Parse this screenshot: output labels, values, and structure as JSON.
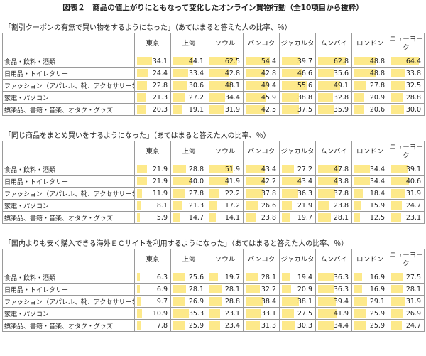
{
  "title": "図表２　商品の値上がりにともなって変化したオンライン買物行動（全10項目から抜粋）",
  "columns": [
    "東京",
    "上海",
    "ソウル",
    "バンコク",
    "ジャカルタ",
    "ムンバイ",
    "ロンドン",
    "ニューヨーク"
  ],
  "tables": [
    {
      "heading": "「割引クーポンの有無で買い物をするようになった」（あてはまると答えた人の比率、％）",
      "rows": [
        {
          "label": "食品・飲料・酒類",
          "values": [
            34.1,
            44.1,
            62.5,
            54.4,
            39.7,
            62.8,
            48.8,
            64.4
          ]
        },
        {
          "label": "日用品・トイレタリー",
          "values": [
            24.4,
            33.4,
            42.8,
            42.8,
            46.6,
            35.6,
            48.8,
            33.8
          ]
        },
        {
          "label": "ファッション（アパレル、靴、アクセサリーなど）",
          "values": [
            22.8,
            30.6,
            48.1,
            49.4,
            55.6,
            49.1,
            27.8,
            32.5
          ]
        },
        {
          "label": "家電・パソコン",
          "values": [
            21.3,
            27.2,
            34.4,
            45.9,
            38.8,
            32.8,
            20.9,
            28.8
          ]
        },
        {
          "label": "娯楽品、書籍・音楽、オタク・グッズ",
          "values": [
            20.3,
            19.1,
            31.9,
            42.5,
            37.5,
            35.9,
            20.6,
            30
          ],
          "value_labels": [
            "20.3",
            "19.1",
            "31.9",
            "42.5",
            "37.5",
            "35.9",
            "20.6",
            "30.0"
          ]
        }
      ]
    },
    {
      "heading": "「同じ商品をまとめ買いをするようになった」（あてはまると答えた人の比率、％）",
      "rows": [
        {
          "label": "食品・飲料・酒類",
          "values": [
            21.9,
            28.8,
            51.9,
            43.4,
            27.2,
            47.8,
            34.4,
            39.1
          ]
        },
        {
          "label": "日用品・トイレタリー",
          "values": [
            21.9,
            40,
            41.9,
            42.2,
            43.4,
            43.8,
            34.4,
            40.6
          ],
          "value_labels": [
            "21.9",
            "40.0",
            "41.9",
            "42.2",
            "43.4",
            "43.8",
            "34.4",
            "40.6"
          ]
        },
        {
          "label": "ファッション（アパレル、靴、アクセサリーなど）",
          "values": [
            11.9,
            27.8,
            22.2,
            37.8,
            36.3,
            37.8,
            18.4,
            31.9
          ]
        },
        {
          "label": "家電・パソコン",
          "values": [
            8.1,
            21.3,
            17.2,
            26.6,
            21.9,
            23.8,
            15.9,
            24.7
          ]
        },
        {
          "label": "娯楽品、書籍・音楽、オタク・グッズ",
          "values": [
            5.9,
            14.7,
            14.1,
            23.8,
            19.7,
            28.1,
            12.5,
            23.1
          ]
        }
      ]
    },
    {
      "heading": "「国内よりも安く購入できる海外ＥＣサイトを利用するようになった」（あてはまると答えた人の比率、％）",
      "rows": [
        {
          "label": "食品・飲料・酒類",
          "values": [
            6.3,
            25.6,
            19.7,
            28.1,
            19.4,
            36.3,
            16.9,
            27.5
          ]
        },
        {
          "label": "日用品・トイレタリー",
          "values": [
            6.9,
            28.1,
            28.1,
            32.2,
            20.9,
            36.3,
            16.9,
            28.1
          ]
        },
        {
          "label": "ファッション（アパレル、靴、アクセサリーなど）",
          "values": [
            9.7,
            26.9,
            28.8,
            38.4,
            38.1,
            39.4,
            29.1,
            31.9
          ]
        },
        {
          "label": "家電・パソコン",
          "values": [
            10.9,
            35.3,
            23.1,
            33.1,
            27.5,
            41.9,
            25.9,
            26.9
          ]
        },
        {
          "label": "娯楽品、書籍・音楽、オタク・グッズ",
          "values": [
            7.8,
            25.9,
            23.4,
            31.3,
            30.3,
            34.4,
            25.9,
            24.7
          ]
        }
      ]
    }
  ]
}
